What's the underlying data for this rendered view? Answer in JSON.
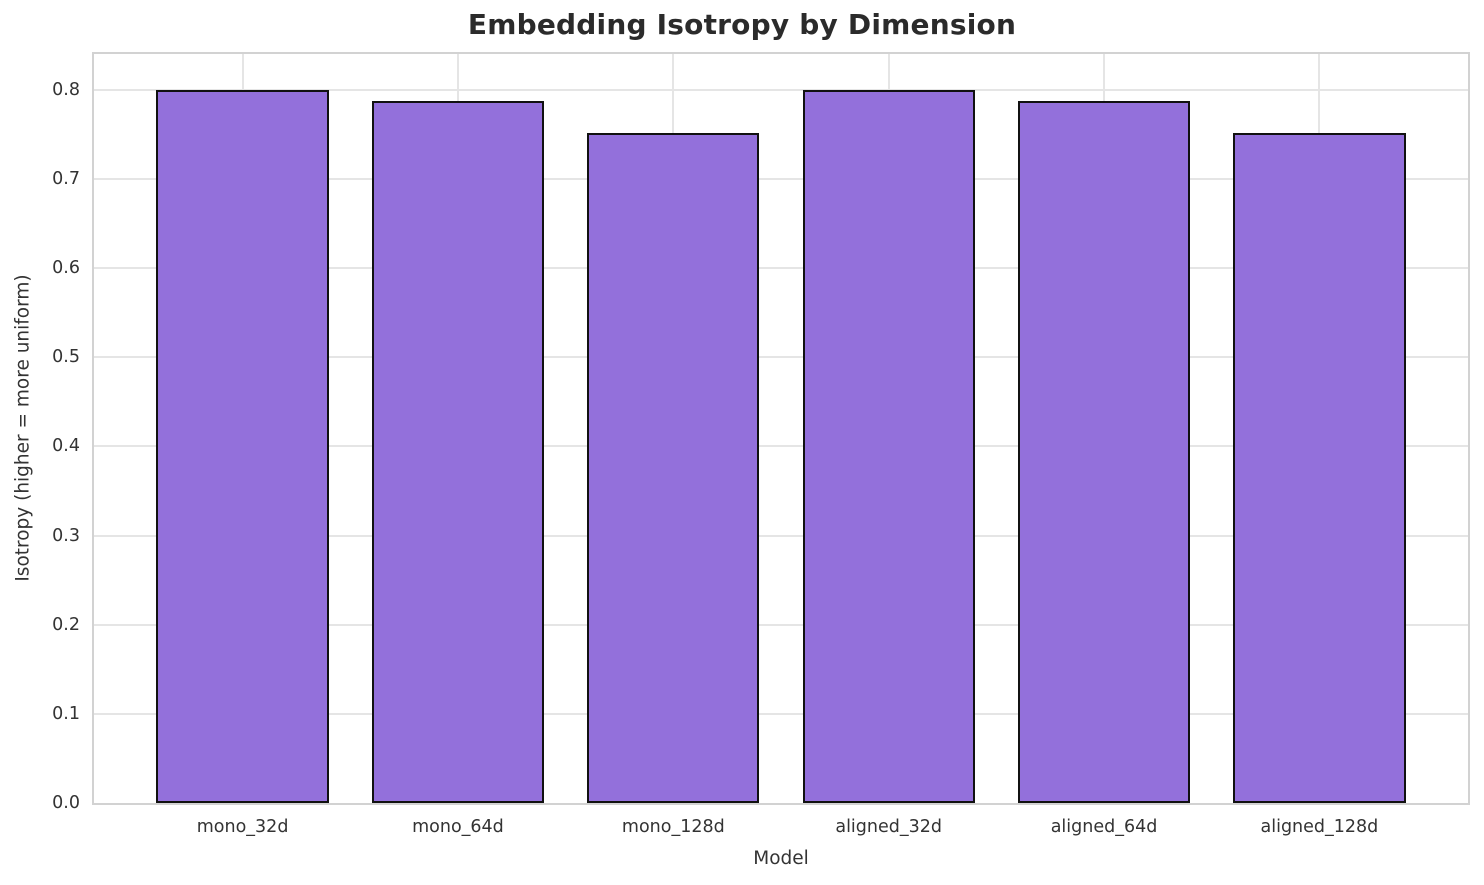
{
  "chart_data": {
    "type": "bar",
    "title": "Embedding Isotropy by Dimension",
    "xlabel": "Model",
    "ylabel": "Isotropy (higher = more uniform)",
    "categories": [
      "mono_32d",
      "mono_64d",
      "mono_128d",
      "aligned_32d",
      "aligned_64d",
      "aligned_128d"
    ],
    "values": [
      0.8,
      0.787,
      0.751,
      0.8,
      0.787,
      0.751
    ],
    "yticks": [
      0.0,
      0.1,
      0.2,
      0.3,
      0.4,
      0.5,
      0.6,
      0.7,
      0.8
    ],
    "ytick_labels": [
      "0.0",
      "0.1",
      "0.2",
      "0.3",
      "0.4",
      "0.5",
      "0.6",
      "0.7",
      "0.8"
    ],
    "ylim": [
      0,
      0.84
    ],
    "xlim": [
      -0.69,
      5.69
    ],
    "bar_width_units": 0.8,
    "grid": true,
    "legend": "none",
    "bar_fill_color": "#9370DB",
    "bar_edge_color": "#111111",
    "grid_color": "#e5e5e5",
    "spine_color": "#d2d2d2",
    "title_color": "#2b2b2b",
    "tick_color": "#333333"
  }
}
